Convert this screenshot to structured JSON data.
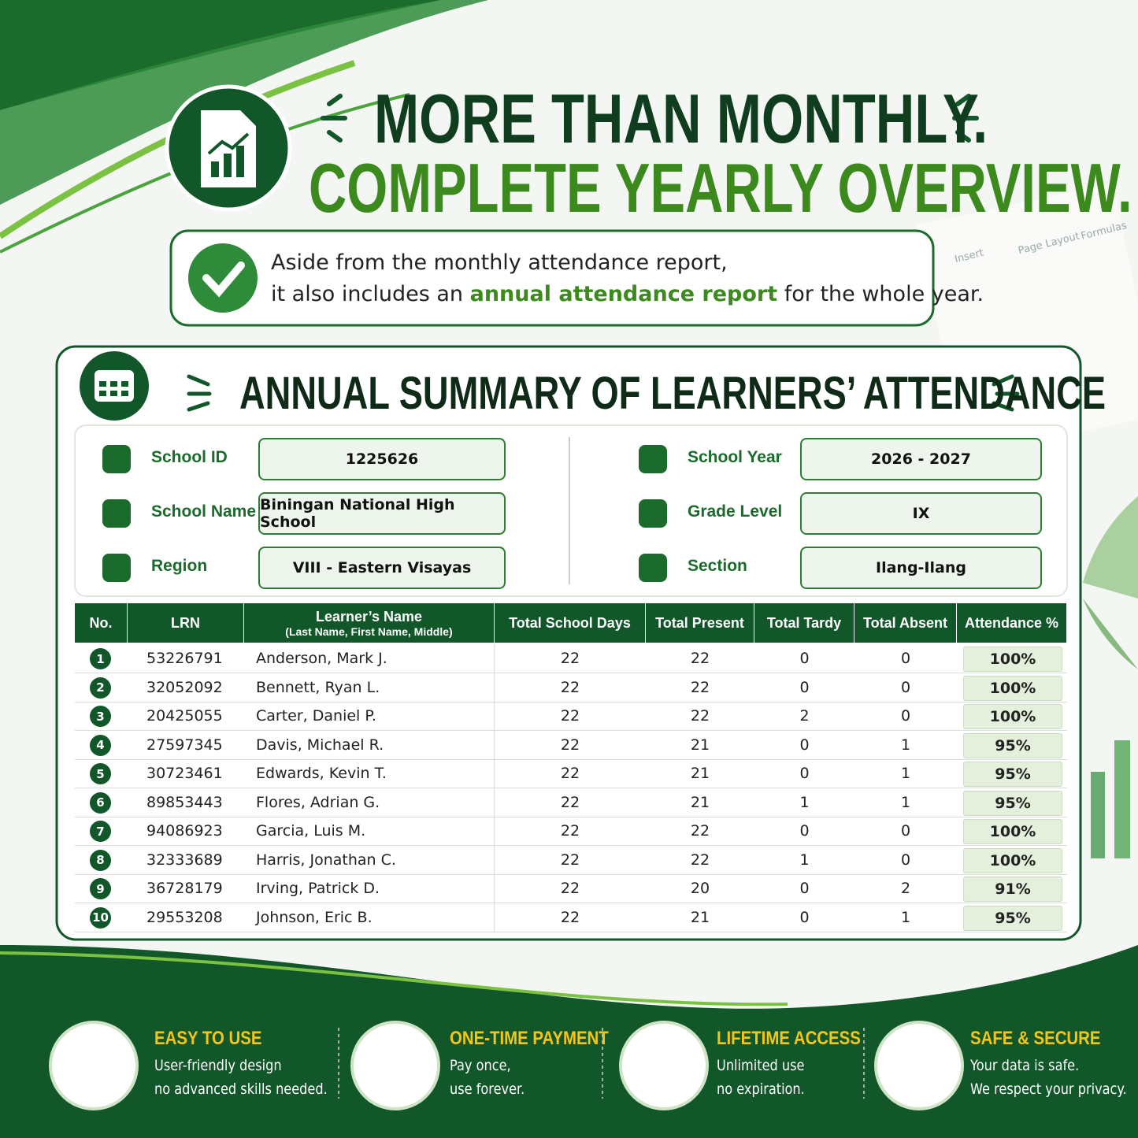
{
  "header": {
    "line1": "MORE THAN MONTHLY.",
    "line2": "COMPLETE YEARLY OVERVIEW."
  },
  "callout": {
    "line1": "Aside from the monthly attendance report,",
    "line2_before": "it also includes an",
    "highlight": "annual attendance report",
    "line2_after": "for the whole year."
  },
  "background": {
    "ribbon": [
      "Insert",
      "Page Layout",
      "Formulas"
    ]
  },
  "summary": {
    "title": "ANNUAL SUMMARY OF LEARNERS’ ATTENDANCE",
    "info": [
      {
        "label": "School ID",
        "value": "1225626"
      },
      {
        "label": "School Name",
        "value": "Biningan National High School"
      },
      {
        "label": "Region",
        "value": "VIII - Eastern Visayas"
      },
      {
        "label": "School Year",
        "value": "2026 - 2027"
      },
      {
        "label": "Grade Level",
        "value": "IX"
      },
      {
        "label": "Section",
        "value": "Ilang-Ilang"
      }
    ]
  },
  "table": {
    "columns": [
      "No.",
      "LRN",
      "Learner’s Name",
      "Total School Days",
      "Total Present",
      "Total Tardy",
      "Total Absent",
      "Attendance %"
    ],
    "name_sub": "(Last Name, First Name, Middle)",
    "rows": [
      [
        "1",
        "53226791",
        "Anderson, Mark J.",
        "22",
        "22",
        "0",
        "0",
        "100%"
      ],
      [
        "2",
        "32052092",
        "Bennett, Ryan L.",
        "22",
        "22",
        "0",
        "0",
        "100%"
      ],
      [
        "3",
        "20425055",
        "Carter, Daniel P.",
        "22",
        "22",
        "2",
        "0",
        "100%"
      ],
      [
        "4",
        "27597345",
        "Davis, Michael R.",
        "22",
        "21",
        "0",
        "1",
        "95%"
      ],
      [
        "5",
        "30723461",
        "Edwards, Kevin T.",
        "22",
        "21",
        "0",
        "1",
        "95%"
      ],
      [
        "6",
        "89853443",
        "Flores, Adrian G.",
        "22",
        "21",
        "1",
        "1",
        "95%"
      ],
      [
        "7",
        "94086923",
        "Garcia, Luis M.",
        "22",
        "22",
        "0",
        "0",
        "100%"
      ],
      [
        "8",
        "32333689",
        "Harris, Jonathan C.",
        "22",
        "22",
        "1",
        "0",
        "100%"
      ],
      [
        "9",
        "36728179",
        "Irving, Patrick D.",
        "22",
        "20",
        "0",
        "2",
        "91%"
      ],
      [
        "10",
        "29553208",
        "Johnson, Eric B.",
        "22",
        "21",
        "0",
        "1",
        "95%"
      ]
    ]
  },
  "features": [
    {
      "title": "EASY TO USE",
      "line1": "User-friendly design",
      "line2": "no advanced skills needed."
    },
    {
      "title": "ONE-TIME PAYMENT",
      "line1": "Pay once,",
      "line2": "use forever."
    },
    {
      "title": "LIFETIME ACCESS",
      "line1": "Unlimited use",
      "line2": "no expiration."
    },
    {
      "title": "SAFE & SECURE",
      "line1": "Your data is safe.",
      "line2": "We respect your privacy."
    }
  ]
}
